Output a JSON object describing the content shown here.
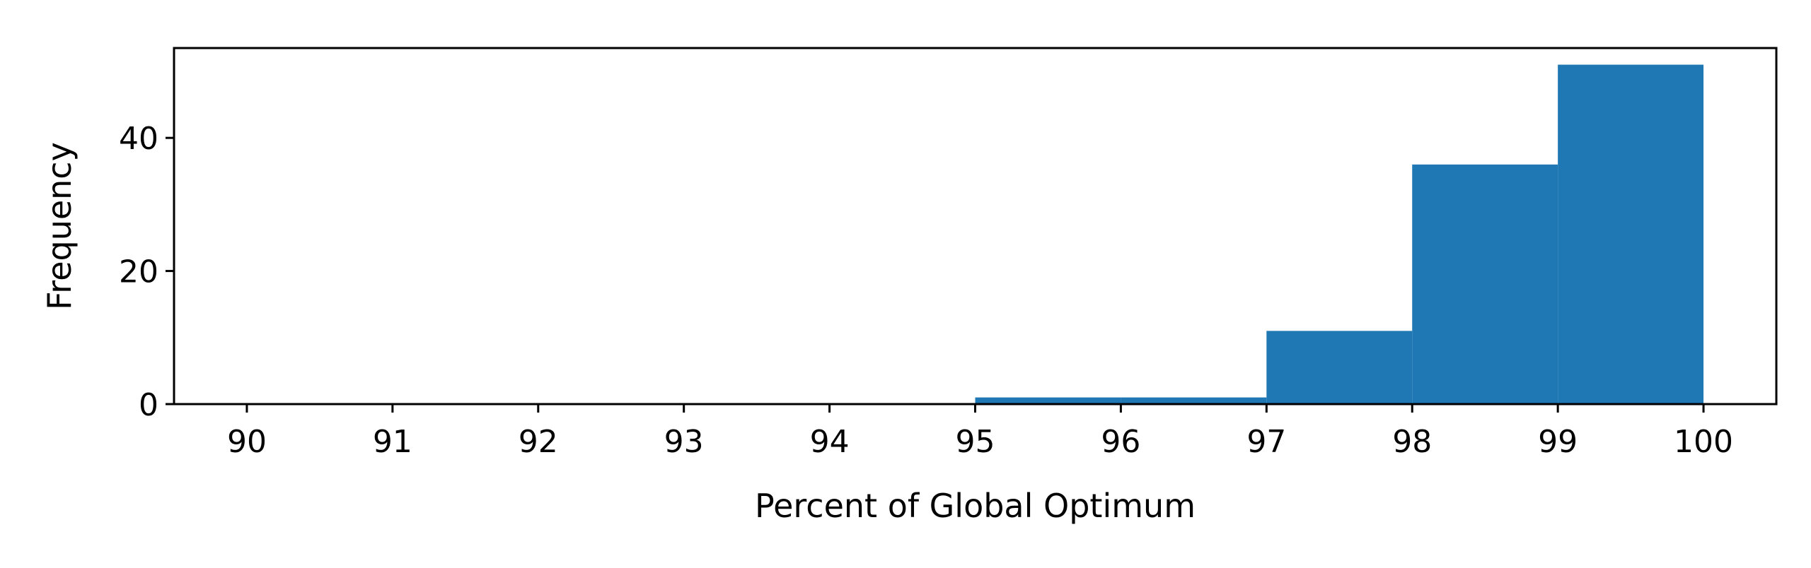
{
  "chart_data": {
    "type": "bar",
    "subtype": "histogram",
    "title": "",
    "xlabel": "Percent of Global Optimum",
    "ylabel": "Frequency",
    "xlim": [
      89.5,
      100.5
    ],
    "ylim": [
      0,
      53.5
    ],
    "x_ticks": [
      90,
      91,
      92,
      93,
      94,
      95,
      96,
      97,
      98,
      99,
      100
    ],
    "x_tick_labels": [
      "90",
      "91",
      "92",
      "93",
      "94",
      "95",
      "96",
      "97",
      "98",
      "99",
      "100"
    ],
    "y_ticks": [
      0,
      20,
      40
    ],
    "y_tick_labels": [
      "0",
      "20",
      "40"
    ],
    "bins": [
      {
        "start": 95,
        "end": 96,
        "value": 1
      },
      {
        "start": 96,
        "end": 97,
        "value": 1
      },
      {
        "start": 97,
        "end": 98,
        "value": 11
      },
      {
        "start": 98,
        "end": 99,
        "value": 36
      },
      {
        "start": 99,
        "end": 100,
        "value": 51
      }
    ],
    "color": "#1f77b4",
    "grid": false,
    "legend": "none"
  }
}
